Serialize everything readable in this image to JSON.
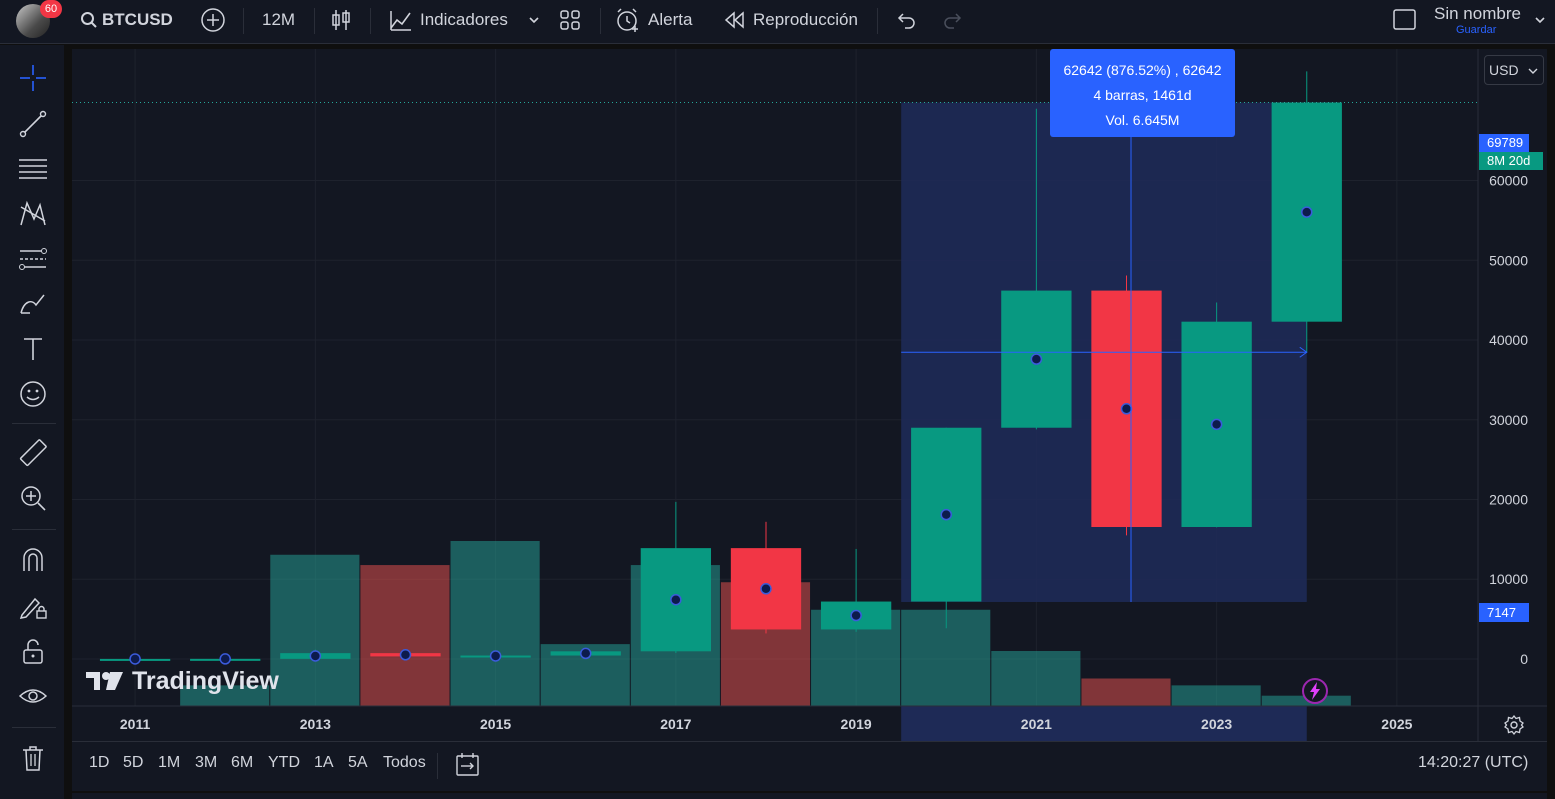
{
  "header": {
    "notification_count": "60",
    "symbol": "BTCUSD",
    "interval": "12M",
    "indicators_label": "Indicadores",
    "alert_label": "Alerta",
    "replay_label": "Reproducción",
    "layout_name": "Sin nombre",
    "save_label": "Guardar"
  },
  "price_scale": {
    "currency": "USD",
    "ticks": [
      "60000",
      "50000",
      "40000",
      "30000",
      "20000",
      "10000",
      "0"
    ],
    "current_price_label": "69789",
    "countdown_label": "8M 20d",
    "measure_low_label": "7147"
  },
  "measure_tooltip": {
    "line1": "62642 (876.52%) , 62642",
    "line2": "4 barras, 1461d",
    "line3": "Vol. 6.645M"
  },
  "watermark": "TradingView",
  "time_axis": {
    "labels": [
      "2011",
      "2013",
      "2015",
      "2017",
      "2019",
      "2021",
      "2023",
      "2025"
    ]
  },
  "bottom_bar": {
    "ranges": [
      "1D",
      "5D",
      "1M",
      "3M",
      "6M",
      "YTD",
      "1A",
      "5A",
      "Todos"
    ],
    "clock": "14:20:27 (UTC)"
  },
  "colors": {
    "background": "#131722",
    "up": "#089981",
    "down": "#f23645",
    "accent": "#2962ff",
    "measure_band": "#1e2a56"
  },
  "chart_data": {
    "type": "candlestick",
    "symbol": "BTCUSD",
    "interval": "12M",
    "ylim": [
      -5900,
      76500
    ],
    "x_range": [
      2010.3,
      2025.9
    ],
    "candles": [
      {
        "year": 2011,
        "open": 0,
        "high": 30,
        "low": 0,
        "close": 5
      },
      {
        "year": 2012,
        "open": 5,
        "high": 15,
        "low": 4,
        "close": 13
      },
      {
        "year": 2013,
        "open": 13,
        "high": 1160,
        "low": 13,
        "close": 730
      },
      {
        "year": 2014,
        "open": 730,
        "high": 1000,
        "low": 280,
        "close": 320
      },
      {
        "year": 2015,
        "open": 320,
        "high": 500,
        "low": 160,
        "close": 430
      },
      {
        "year": 2016,
        "open": 430,
        "high": 980,
        "low": 360,
        "close": 960
      },
      {
        "year": 2017,
        "open": 960,
        "high": 19700,
        "low": 750,
        "close": 13900
      },
      {
        "year": 2018,
        "open": 13900,
        "high": 17200,
        "low": 3200,
        "close": 3700
      },
      {
        "year": 2019,
        "open": 3700,
        "high": 13800,
        "low": 3400,
        "close": 7200
      },
      {
        "year": 2020,
        "open": 7200,
        "high": 29000,
        "low": 3850,
        "close": 29000
      },
      {
        "year": 2021,
        "open": 29000,
        "high": 69000,
        "low": 28800,
        "close": 46200
      },
      {
        "year": 2022,
        "open": 46200,
        "high": 48100,
        "low": 15500,
        "close": 16550
      },
      {
        "year": 2023,
        "open": 16550,
        "high": 44700,
        "low": 16500,
        "close": 42300
      },
      {
        "year": 2024,
        "open": 42300,
        "high": 73700,
        "low": 38500,
        "close": 69789
      }
    ],
    "volume_series": {
      "name": "Vol",
      "values": [
        0,
        0.3,
        2.2,
        2.05,
        2.4,
        0.9,
        2.05,
        1.8,
        1.4,
        1.4,
        0.8,
        0.4,
        0.3,
        0.15
      ],
      "colors": [
        "up",
        "up",
        "up",
        "down",
        "up",
        "up",
        "up",
        "down",
        "up",
        "up",
        "up",
        "down",
        "up",
        "up"
      ]
    },
    "measure": {
      "from_year": 2020,
      "to_year": 2024,
      "from_price": 7147,
      "to_price": 69789,
      "change": 62642,
      "percent": 876.52,
      "bars": 4,
      "days": 1461
    },
    "price_ticks": [
      0,
      10000,
      20000,
      30000,
      40000,
      50000,
      60000
    ],
    "x_ticks": [
      2011,
      2013,
      2015,
      2017,
      2019,
      2021,
      2023,
      2025
    ],
    "grid": true
  }
}
